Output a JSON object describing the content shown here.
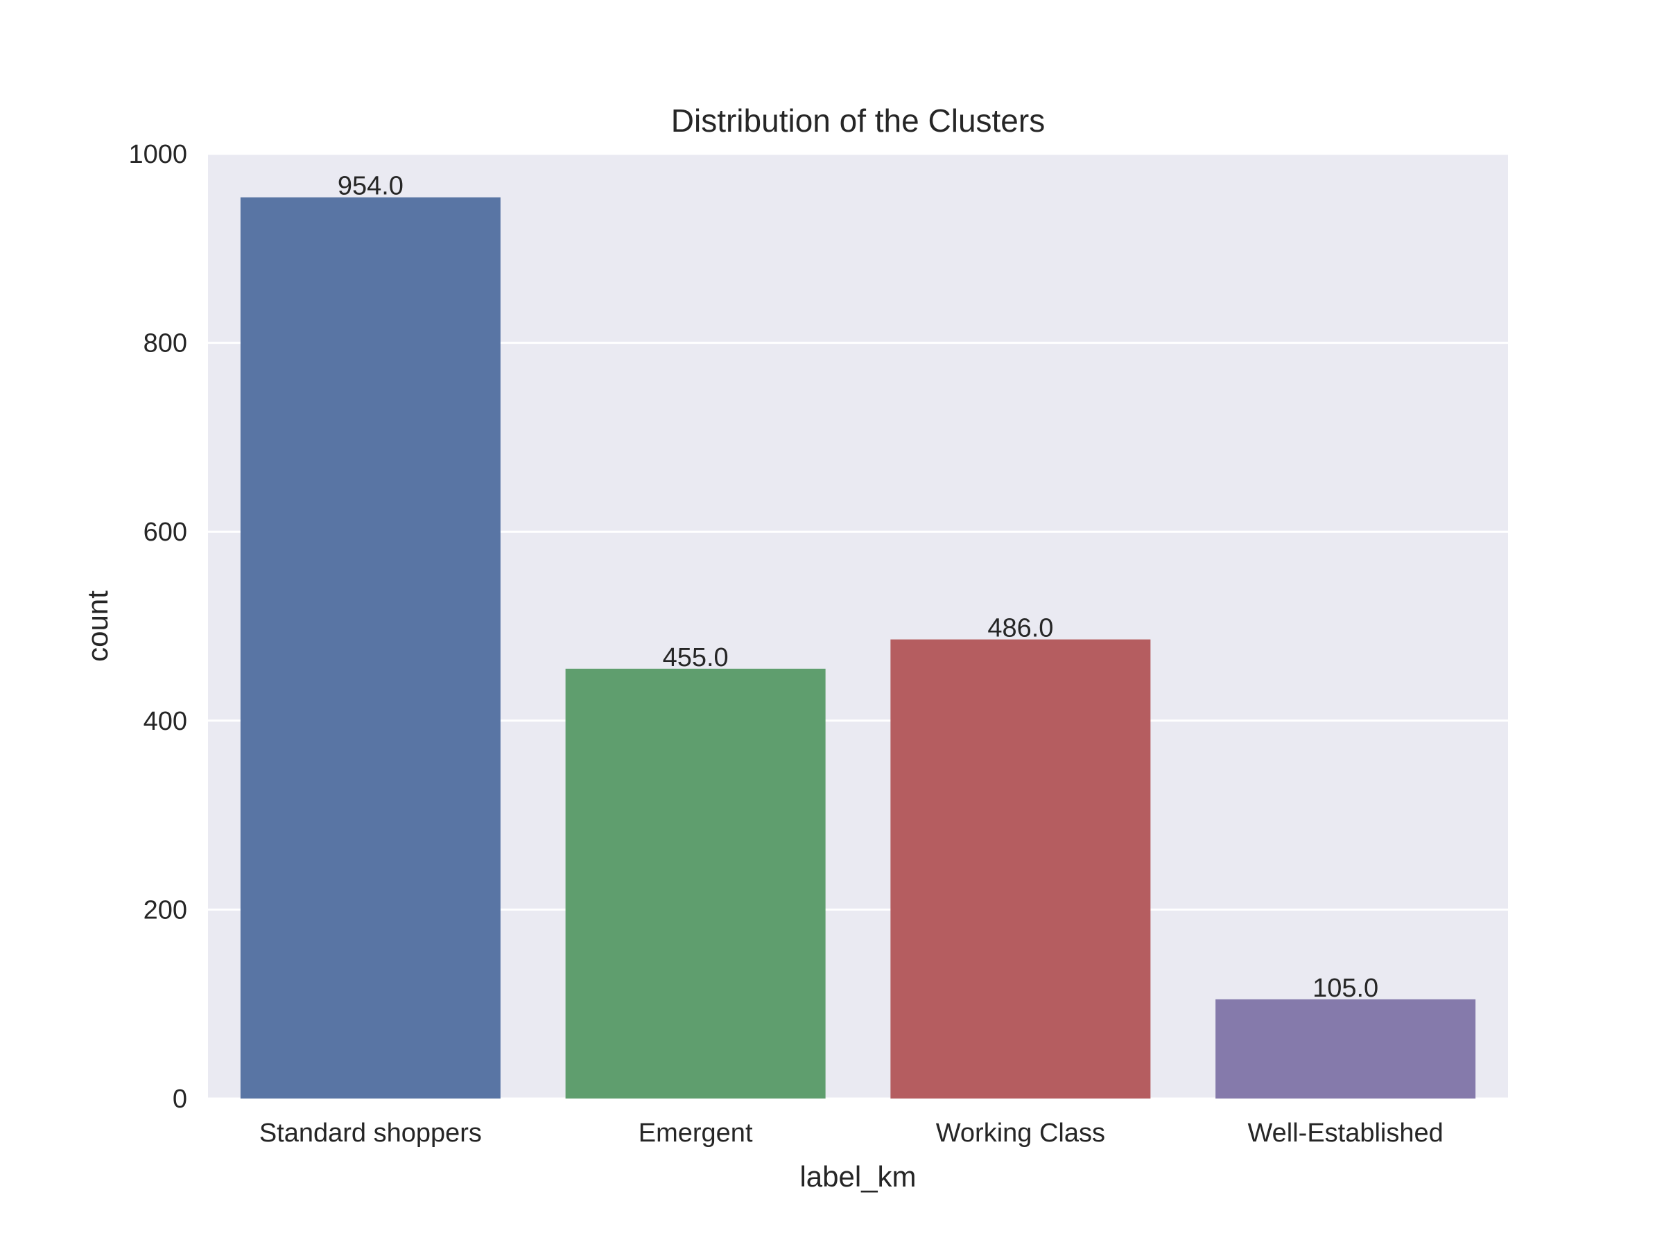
{
  "chart_data": {
    "type": "bar",
    "title": "Distribution of the Clusters",
    "xlabel": "label_km",
    "ylabel": "count",
    "categories": [
      "Standard shoppers",
      "Emergent",
      "Working Class",
      "Well-Established"
    ],
    "values": [
      954,
      455,
      486,
      105
    ],
    "data_labels": [
      "954.0",
      "455.0",
      "486.0",
      "105.0"
    ],
    "colors": [
      "#5975a4",
      "#5f9e6e",
      "#b55d60",
      "#857aab"
    ],
    "ylim": [
      0,
      1000
    ],
    "yticks": [
      0,
      200,
      400,
      600,
      800,
      1000
    ],
    "grid": true,
    "style": {
      "plot_background": "#eaeaf2",
      "grid_color": "#ffffff"
    }
  }
}
